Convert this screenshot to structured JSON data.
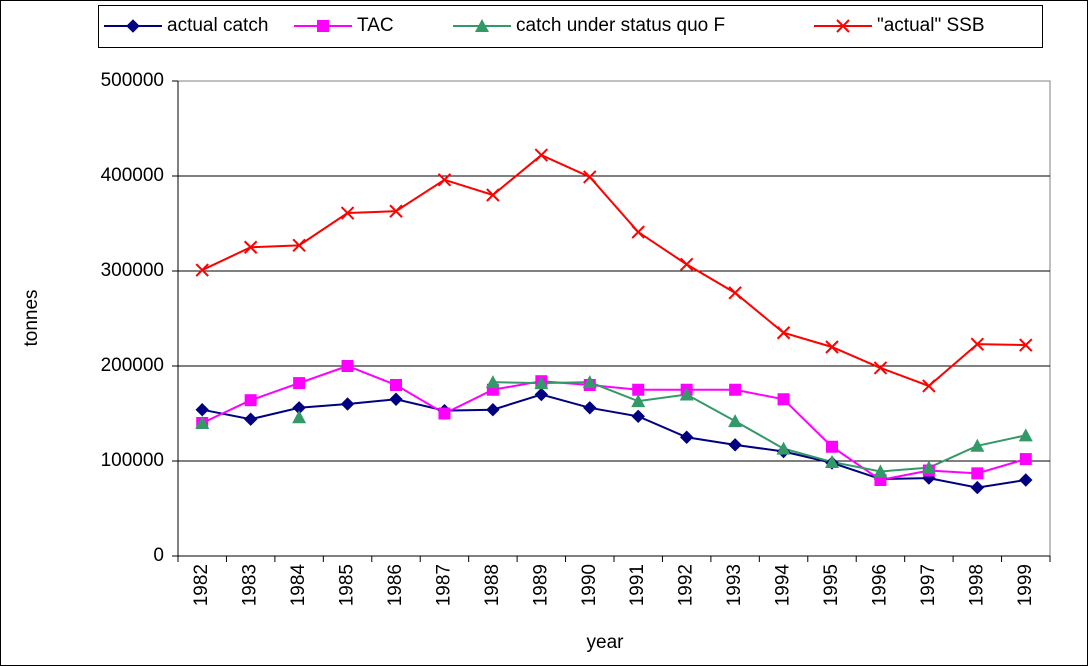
{
  "chart_data": {
    "type": "line",
    "x_label": "year",
    "y_label": "tonnes",
    "categories": [
      "1982",
      "1983",
      "1984",
      "1985",
      "1986",
      "1987",
      "1988",
      "1989",
      "1990",
      "1991",
      "1992",
      "1993",
      "1994",
      "1995",
      "1996",
      "1997",
      "1998",
      "1999"
    ],
    "series": [
      {
        "name": "actual catch",
        "color": "#000080",
        "marker": "diamond",
        "values": [
          154000,
          144000,
          156000,
          160000,
          165000,
          153000,
          154000,
          170000,
          156000,
          147000,
          125000,
          117000,
          110000,
          98000,
          81000,
          82000,
          72000,
          80000
        ]
      },
      {
        "name": "TAC",
        "color": "#ff00ff",
        "marker": "square",
        "values": [
          140000,
          164000,
          182000,
          200000,
          180000,
          150000,
          175000,
          184000,
          180000,
          175000,
          175000,
          175000,
          165000,
          115000,
          80000,
          90000,
          87000,
          102000
        ]
      },
      {
        "name": "catch under status quo F",
        "color": "#339966",
        "marker": "triangle",
        "values": [
          140000,
          null,
          146000,
          null,
          null,
          null,
          183000,
          182000,
          183000,
          163000,
          170000,
          142000,
          113000,
          99000,
          89000,
          93000,
          116000,
          127000
        ]
      },
      {
        "name": "\"actual\" SSB",
        "color": "#ff0000",
        "marker": "x",
        "values": [
          301000,
          325000,
          327000,
          361000,
          363000,
          396000,
          380000,
          422000,
          399000,
          341000,
          307000,
          277000,
          235000,
          220000,
          198000,
          179000,
          223000,
          222000
        ]
      }
    ],
    "ylim": [
      0,
      500000
    ],
    "yticks": [
      0,
      100000,
      200000,
      300000,
      400000,
      500000
    ],
    "grid": true,
    "legend": "top"
  }
}
